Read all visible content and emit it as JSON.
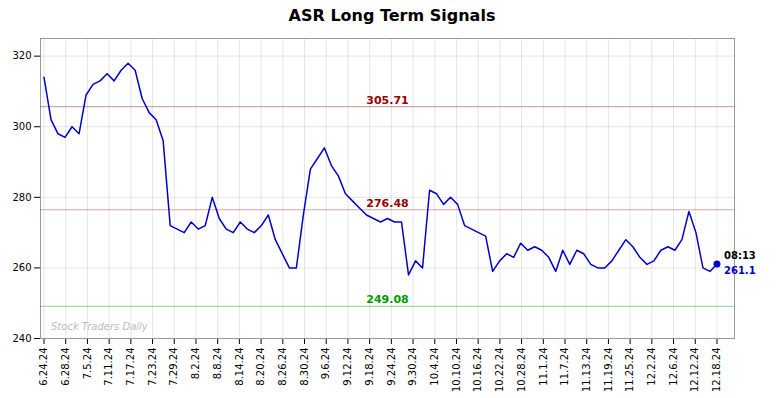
{
  "chart_data": {
    "type": "line",
    "title": "ASR Long Term Signals",
    "x": [
      0,
      1,
      2,
      3,
      4,
      5,
      6,
      7,
      8,
      9,
      10,
      11,
      12,
      13,
      14,
      15,
      16,
      17,
      18,
      19,
      20,
      21,
      22,
      23,
      24,
      25,
      26,
      27,
      28,
      29,
      30,
      31,
      32,
      33,
      34,
      35,
      36,
      37,
      38,
      39,
      40,
      41,
      42,
      43,
      44,
      45,
      46,
      47,
      48,
      49,
      50,
      51,
      52,
      53,
      54,
      55,
      56,
      57,
      58,
      59,
      60,
      61,
      62,
      63,
      64,
      65,
      66,
      67,
      68,
      69,
      70,
      71,
      72,
      73,
      74,
      75,
      76,
      77,
      78,
      79,
      80,
      81,
      82,
      83,
      84,
      85,
      86,
      87,
      88,
      89,
      90,
      91,
      92,
      93,
      94,
      95,
      96
    ],
    "values": [
      314,
      302,
      298,
      297,
      300,
      298,
      309,
      312,
      313,
      315,
      313,
      316,
      318,
      316,
      308,
      304,
      302,
      296,
      272,
      271,
      270,
      273,
      271,
      272,
      280,
      274,
      271,
      270,
      273,
      271,
      270,
      272,
      275,
      268,
      264,
      260,
      260,
      275,
      288,
      291,
      294,
      289,
      286,
      281,
      279,
      277,
      275,
      274,
      273,
      274,
      273,
      273,
      258,
      262,
      260,
      282,
      281,
      278,
      280,
      278,
      272,
      271,
      270,
      269,
      259,
      262,
      264,
      263,
      267,
      265,
      266,
      265,
      263,
      259,
      265,
      261,
      265,
      264,
      261,
      260,
      260,
      262,
      265,
      268,
      266,
      263,
      261,
      262,
      265,
      266,
      265,
      268,
      276,
      270,
      260,
      259,
      261.1
    ],
    "color": "#0000cc",
    "xlim": [
      -0.5,
      98.5
    ],
    "xticks": [
      {
        "value": 0,
        "label": "6.24.24"
      },
      {
        "value": 3.096774193548387,
        "label": "6.28.24"
      },
      {
        "value": 6.193548387096774,
        "label": "7.5.24"
      },
      {
        "value": 9.290322580645162,
        "label": "7.11.24"
      },
      {
        "value": 12.387096774193548,
        "label": "7.17.24"
      },
      {
        "value": 15.483870967741936,
        "label": "7.23.24"
      },
      {
        "value": 18.580645161290324,
        "label": "7.29.24"
      },
      {
        "value": 21.677419354838708,
        "label": "8.2.24"
      },
      {
        "value": 24.774193548387096,
        "label": "8.8.24"
      },
      {
        "value": 27.870967741935484,
        "label": "8.14.24"
      },
      {
        "value": 30.967741935483872,
        "label": "8.20.24"
      },
      {
        "value": 34.064516129032256,
        "label": "8.26.24"
      },
      {
        "value": 37.16129032258065,
        "label": "8.30.24"
      },
      {
        "value": 40.25806451612903,
        "label": "9.6.24"
      },
      {
        "value": 43.354838709677416,
        "label": "9.12.24"
      },
      {
        "value": 46.45161290322581,
        "label": "9.18.24"
      },
      {
        "value": 49.54838709677419,
        "label": "9.24.24"
      },
      {
        "value": 52.645161290322584,
        "label": "9.30.24"
      },
      {
        "value": 55.74193548387097,
        "label": "10.4.24"
      },
      {
        "value": 58.83870967741935,
        "label": "10.10.24"
      },
      {
        "value": 61.935483870967744,
        "label": "10.16.24"
      },
      {
        "value": 65.03225806451613,
        "label": "10.22.24"
      },
      {
        "value": 68.12903225806451,
        "label": "10.28.24"
      },
      {
        "value": 71.2258064516129,
        "label": "11.1.24"
      },
      {
        "value": 74.32258064516128,
        "label": "11.7.24"
      },
      {
        "value": 77.41935483870968,
        "label": "11.13.24"
      },
      {
        "value": 80.51612903225806,
        "label": "11.19.24"
      },
      {
        "value": 83.61290322580645,
        "label": "11.25.24"
      },
      {
        "value": 86.70967741935483,
        "label": "12.2.24"
      },
      {
        "value": 89.80645161290323,
        "label": "12.6.24"
      },
      {
        "value": 92.90322580645162,
        "label": "12.12.24"
      },
      {
        "value": 96,
        "label": "12.18.24"
      }
    ],
    "ylim": [
      240,
      325
    ],
    "yticks": [
      240,
      260,
      280,
      300,
      320
    ],
    "grid": true,
    "hlines": [
      {
        "value": 305.71,
        "label": "305.71",
        "color": "#990000"
      },
      {
        "value": 276.48,
        "label": "276.48",
        "color": "#990000"
      },
      {
        "value": 249.08,
        "label": "249.08",
        "color": "#009900"
      }
    ],
    "annotations": [
      {
        "text": "08:13",
        "x": 96,
        "y": 261.1,
        "color": "#000000"
      },
      {
        "text": "261.1",
        "x": 96,
        "y": 261.1,
        "color": "#0000cc"
      },
      {
        "text": "Stock Traders Daily",
        "x": 1,
        "y": 242.5,
        "color": "#bbbbbb"
      }
    ]
  }
}
